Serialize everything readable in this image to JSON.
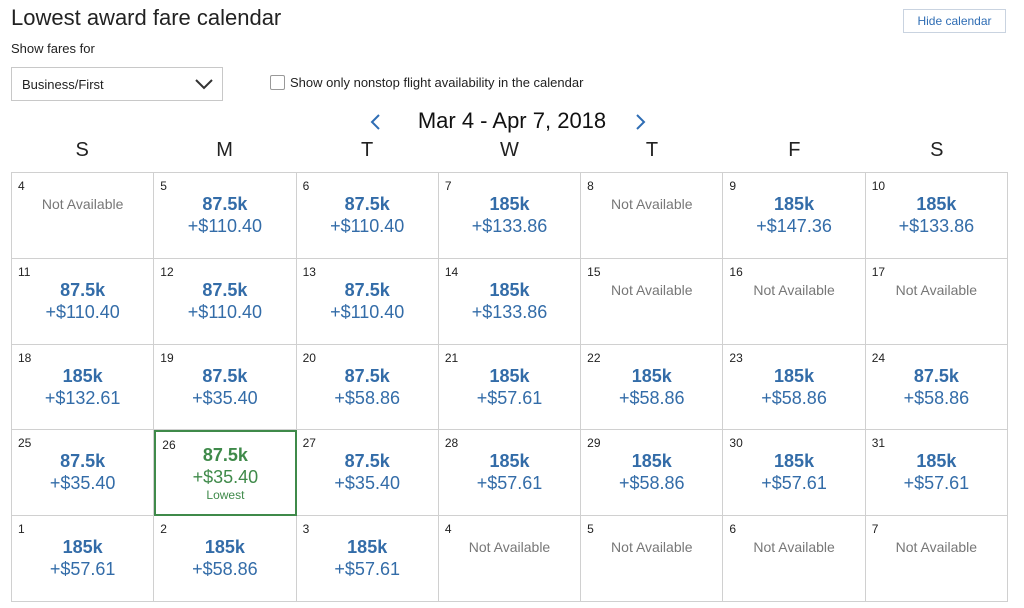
{
  "header": {
    "title": "Lowest award fare calendar",
    "hide_calendar_label": "Hide calendar",
    "show_fares_for_label": "Show fares for",
    "cabin_selected": "Business/First",
    "nonstop_label": "Show only nonstop flight availability in the calendar",
    "nonstop_checked": false
  },
  "calendar": {
    "range_label": "Mar 4 - Apr 7, 2018",
    "weekdays": [
      "S",
      "M",
      "T",
      "W",
      "T",
      "F",
      "S"
    ],
    "lowest_label": "Lowest",
    "weeks": [
      [
        {
          "day": "4",
          "status": "Not Available"
        },
        {
          "day": "5",
          "miles": "87.5k",
          "tax": "+$110.40"
        },
        {
          "day": "6",
          "miles": "87.5k",
          "tax": "+$110.40"
        },
        {
          "day": "7",
          "miles": "185k",
          "tax": "+$133.86"
        },
        {
          "day": "8",
          "status": "Not Available"
        },
        {
          "day": "9",
          "miles": "185k",
          "tax": "+$147.36"
        },
        {
          "day": "10",
          "miles": "185k",
          "tax": "+$133.86"
        }
      ],
      [
        {
          "day": "11",
          "miles": "87.5k",
          "tax": "+$110.40"
        },
        {
          "day": "12",
          "miles": "87.5k",
          "tax": "+$110.40"
        },
        {
          "day": "13",
          "miles": "87.5k",
          "tax": "+$110.40"
        },
        {
          "day": "14",
          "miles": "185k",
          "tax": "+$133.86"
        },
        {
          "day": "15",
          "status": "Not Available"
        },
        {
          "day": "16",
          "status": "Not Available"
        },
        {
          "day": "17",
          "status": "Not Available"
        }
      ],
      [
        {
          "day": "18",
          "miles": "185k",
          "tax": "+$132.61"
        },
        {
          "day": "19",
          "miles": "87.5k",
          "tax": "+$35.40"
        },
        {
          "day": "20",
          "miles": "87.5k",
          "tax": "+$58.86"
        },
        {
          "day": "21",
          "miles": "185k",
          "tax": "+$57.61"
        },
        {
          "day": "22",
          "miles": "185k",
          "tax": "+$58.86"
        },
        {
          "day": "23",
          "miles": "185k",
          "tax": "+$58.86"
        },
        {
          "day": "24",
          "miles": "87.5k",
          "tax": "+$58.86"
        }
      ],
      [
        {
          "day": "25",
          "miles": "87.5k",
          "tax": "+$35.40"
        },
        {
          "day": "26",
          "miles": "87.5k",
          "tax": "+$35.40",
          "lowest": true
        },
        {
          "day": "27",
          "miles": "87.5k",
          "tax": "+$35.40"
        },
        {
          "day": "28",
          "miles": "185k",
          "tax": "+$57.61"
        },
        {
          "day": "29",
          "miles": "185k",
          "tax": "+$58.86"
        },
        {
          "day": "30",
          "miles": "185k",
          "tax": "+$57.61"
        },
        {
          "day": "31",
          "miles": "185k",
          "tax": "+$57.61"
        }
      ],
      [
        {
          "day": "1",
          "miles": "185k",
          "tax": "+$57.61"
        },
        {
          "day": "2",
          "miles": "185k",
          "tax": "+$58.86"
        },
        {
          "day": "3",
          "miles": "185k",
          "tax": "+$57.61"
        },
        {
          "day": "4",
          "status": "Not Available"
        },
        {
          "day": "5",
          "status": "Not Available"
        },
        {
          "day": "6",
          "status": "Not Available"
        },
        {
          "day": "7",
          "status": "Not Available"
        }
      ]
    ]
  },
  "colors": {
    "accent": "#336ca8",
    "lowest": "#3f8a4a",
    "unavailable": "#777777"
  }
}
